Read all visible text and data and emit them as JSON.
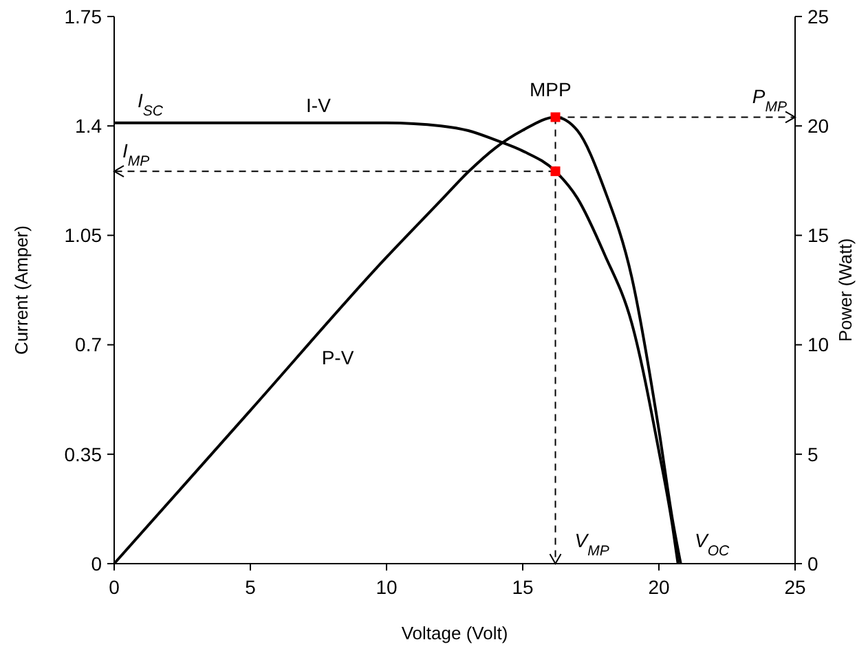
{
  "chart_data": {
    "type": "line",
    "xlabel": "Voltage (Volt)",
    "ylabel": "Current (Amper)",
    "y2label": "Power (Watt)",
    "xlim": [
      0,
      25
    ],
    "xticks": [
      0,
      5,
      10,
      15,
      20,
      25
    ],
    "ylim": [
      0,
      1.75
    ],
    "yticks": [
      0,
      0.35,
      0.7,
      1.05,
      1.4,
      1.75
    ],
    "y2lim": [
      0,
      25
    ],
    "y2ticks": [
      0,
      5,
      10,
      15,
      20,
      25
    ],
    "grid": false,
    "line_style": "solid",
    "series": [
      {
        "name": "I-V",
        "axis": "y",
        "color": "#000000",
        "x": [
          0,
          5,
          10,
          12,
          13,
          14,
          15,
          16.2,
          17,
          18,
          19,
          20,
          20.5,
          20.7
        ],
        "values": [
          1.41,
          1.41,
          1.41,
          1.4,
          1.385,
          1.355,
          1.32,
          1.255,
          1.17,
          0.99,
          0.77,
          0.36,
          0.12,
          0
        ]
      },
      {
        "name": "P-V",
        "axis": "y2",
        "color": "#000000",
        "x": [
          0,
          5,
          10,
          12,
          13,
          14,
          15,
          16.2,
          17,
          18,
          19,
          20,
          20.5,
          20.8
        ],
        "values": [
          0,
          7.0,
          14.0,
          16.6,
          17.9,
          19.0,
          19.8,
          20.4,
          19.8,
          17.1,
          13.1,
          6.1,
          2,
          0
        ]
      },
      {
        "type": "scatter",
        "axis": "y",
        "color": "#ff0000",
        "marker": "square",
        "x": [
          16.2
        ],
        "values": [
          1.255
        ]
      },
      {
        "type": "scatter",
        "axis": "y2",
        "color": "#ff0000",
        "marker": "square",
        "x": [
          16.2
        ],
        "values": [
          20.4
        ]
      }
    ],
    "ref_lines": [
      {
        "axis": "x",
        "value": 16.2,
        "label": "V$_{MP}$",
        "line_style": "dashed",
        "color": "#000000"
      },
      {
        "axis": "y",
        "value": 1.255,
        "label": "I$_{MP}$",
        "line_style": "dashed",
        "color": "#000000"
      },
      {
        "axis": "y2",
        "value": 20.4,
        "label": "P$_{MP}$",
        "line_style": "dashed",
        "color": "#000000"
      }
    ],
    "annotations": [
      "I$_{SC}$",
      "MPP",
      "V$_{OC}$"
    ]
  }
}
